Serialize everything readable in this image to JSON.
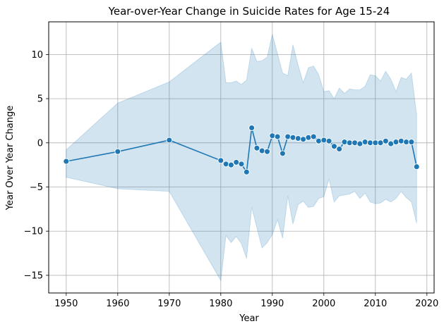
{
  "chart_data": {
    "type": "line",
    "title": "Year-over-Year Change in Suicide Rates for Age 15-24",
    "xlabel": "Year",
    "ylabel": "Year Over Year Change",
    "xlim": [
      1946.6,
      2021.4
    ],
    "ylim": [
      -17,
      13.7
    ],
    "xticks": [
      1950,
      1960,
      1970,
      1980,
      1990,
      2000,
      2010,
      2020
    ],
    "yticks": [
      -15,
      -10,
      -5,
      0,
      5,
      10
    ],
    "grid": true,
    "legend": "none",
    "colors": {
      "line": "#1f77b4",
      "band": "#1f77b4",
      "grid": "#b0b0b0"
    },
    "series": [
      {
        "x": [
          1950,
          1960,
          1970,
          1980,
          1981,
          1982,
          1983,
          1984,
          1985,
          1986,
          1987,
          1988,
          1989,
          1990,
          1991,
          1992,
          1993,
          1994,
          1995,
          1996,
          1997,
          1998,
          1999,
          2000,
          2001,
          2002,
          2003,
          2004,
          2005,
          2006,
          2007,
          2008,
          2009,
          2010,
          2011,
          2012,
          2013,
          2014,
          2015,
          2016,
          2017,
          2018
        ],
        "y": [
          -2.1,
          -1.0,
          0.3,
          -2.0,
          -2.4,
          -2.5,
          -2.2,
          -2.4,
          -3.3,
          1.7,
          -0.6,
          -0.9,
          -1.0,
          0.8,
          0.7,
          -1.2,
          0.7,
          0.6,
          0.5,
          0.4,
          0.6,
          0.7,
          0.2,
          0.3,
          0.2,
          -0.4,
          -0.7,
          0.1,
          0.0,
          0.0,
          -0.1,
          0.1,
          0.0,
          0.0,
          0.0,
          0.2,
          -0.1,
          0.1,
          0.2,
          0.1,
          0.1,
          -2.7
        ],
        "upper": [
          -0.8,
          4.5,
          6.9,
          11.4,
          6.8,
          6.8,
          7.0,
          6.6,
          7.1,
          10.7,
          9.2,
          9.3,
          9.7,
          12.3,
          10.1,
          7.9,
          7.6,
          11.1,
          8.8,
          6.8,
          8.5,
          8.7,
          7.7,
          5.8,
          5.9,
          5.0,
          6.2,
          5.6,
          6.1,
          6.0,
          6.0,
          6.4,
          7.7,
          7.6,
          7.0,
          8.1,
          7.2,
          5.8,
          7.4,
          7.2,
          7.9,
          3.2
        ],
        "lower": [
          -3.9,
          -5.2,
          -5.5,
          -15.6,
          -10.5,
          -11.3,
          -10.6,
          -11.4,
          -13.1,
          -7.3,
          -9.6,
          -11.9,
          -11.3,
          -10.4,
          -8.7,
          -10.8,
          -6.0,
          -9.2,
          -7.0,
          -6.6,
          -7.3,
          -7.2,
          -6.3,
          -6.1,
          -4.1,
          -6.7,
          -6.0,
          -5.9,
          -5.8,
          -5.5,
          -6.3,
          -5.7,
          -6.7,
          -6.9,
          -6.8,
          -6.4,
          -6.7,
          -6.3,
          -5.5,
          -6.2,
          -6.7,
          -9.1
        ]
      }
    ]
  }
}
